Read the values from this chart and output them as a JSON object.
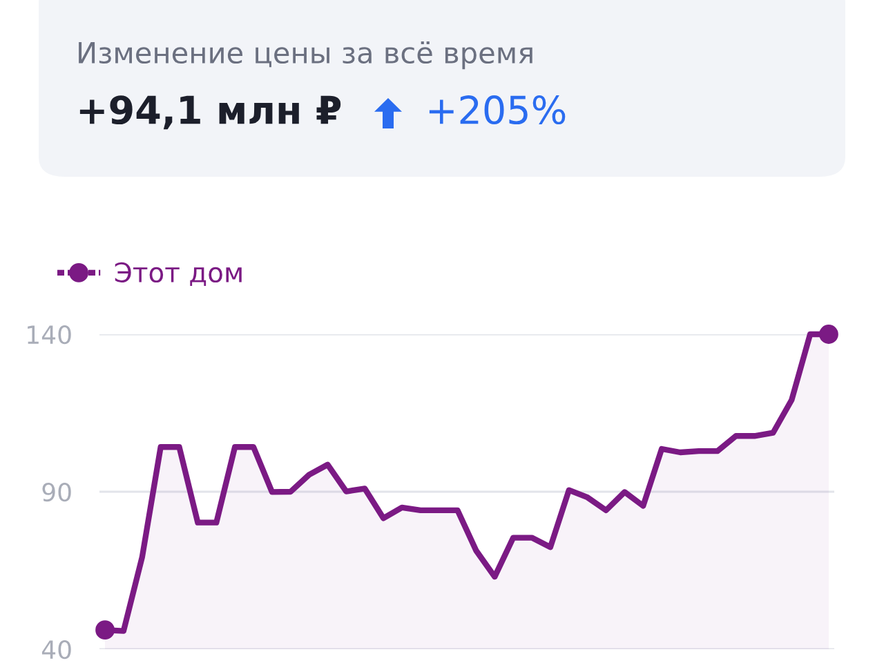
{
  "chart_data": {
    "type": "area",
    "title": "Изменение цены за всё время",
    "annotations": [
      "+94,1 млн ₽",
      "+205%"
    ],
    "categories": [
      null,
      null,
      null,
      null,
      null,
      null,
      null,
      null,
      null,
      null,
      null,
      null,
      null,
      null,
      null,
      null,
      null,
      null,
      null,
      null,
      null,
      null,
      null,
      null,
      null,
      null,
      null,
      null,
      null,
      null,
      null,
      null,
      null,
      null,
      null,
      null,
      null,
      null,
      null,
      null
    ],
    "series": [
      {
        "name": "Этот дом",
        "color": "#7b1a84",
        "values": [
          46.1,
          45.8,
          69.2,
          104.2,
          104.2,
          80.2,
          80.2,
          104.2,
          104.2,
          89.9,
          90,
          95.4,
          98.6,
          90.1,
          91,
          81.6,
          85,
          84.1,
          84.1,
          84.1,
          71.3,
          63,
          75.4,
          75.4,
          72.4,
          90.5,
          88.2,
          84.1,
          89.9,
          85.5,
          103.6,
          102.5,
          102.9,
          102.9,
          107.7,
          107.7,
          108.7,
          119.1,
          140,
          140
        ]
      }
    ],
    "ylim": [
      40,
      140
    ],
    "yticks": [
      40,
      90,
      140
    ],
    "grid": "y",
    "legend": "top left",
    "line_style": "solid"
  }
}
